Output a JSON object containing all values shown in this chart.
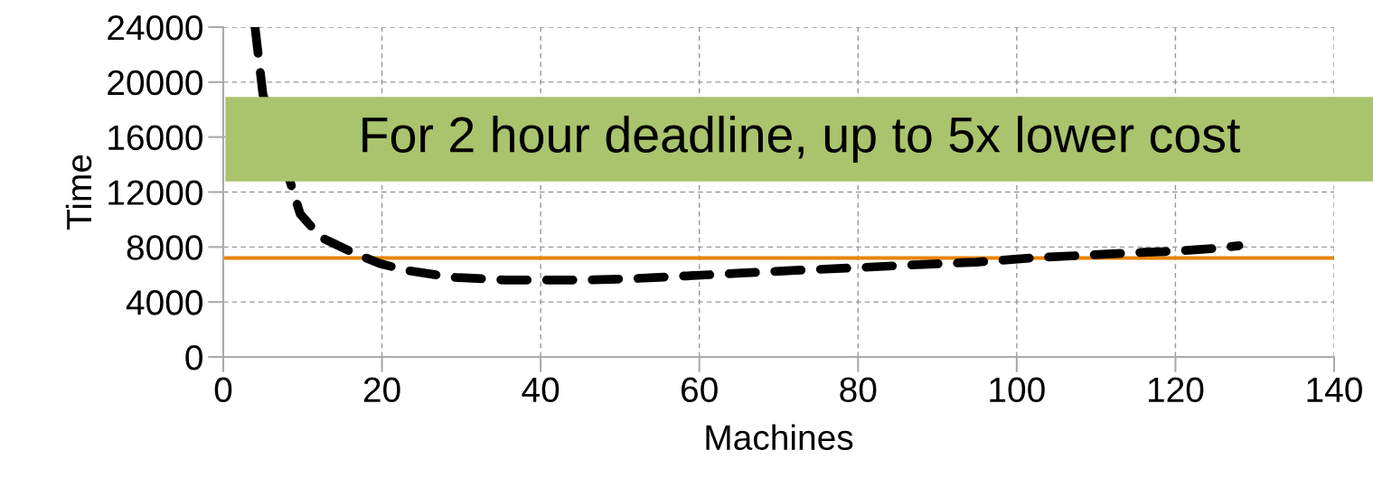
{
  "chart_data": {
    "type": "line",
    "xlabel": "Machines",
    "ylabel": "Time",
    "annotations": [
      "For 2 hour deadline, up to 5x lower cost"
    ],
    "series": [
      {
        "color": "#000000",
        "line_style": "dashed",
        "x": [
          4,
          5,
          9.7,
          12.3,
          16.3,
          19.7,
          23.1,
          28.8,
          35.6,
          40.2,
          45.9,
          51.6,
          58.4,
          65.3,
          72.1,
          80.1,
          86.9,
          94.9,
          101.7,
          108.5,
          115.4,
          120,
          125,
          128
        ],
        "values": [
          24000,
          19100,
          10400,
          8700,
          7600,
          6800,
          6300,
          5800,
          5600,
          5600,
          5600,
          5700,
          5900,
          6100,
          6300,
          6500,
          6700,
          6900,
          7200,
          7400,
          7600,
          7700,
          7900,
          8100
        ]
      }
    ],
    "ref_lines": [
      {
        "axis": "y",
        "value": 7200,
        "color": "#e98300"
      }
    ],
    "xlim": [
      0,
      140
    ],
    "xticks": [
      0,
      20,
      40,
      60,
      80,
      100,
      120,
      140
    ],
    "ylim": [
      0,
      24000
    ],
    "yticks": [
      0,
      4000,
      8000,
      12000,
      16000,
      20000,
      24000
    ],
    "grid": true,
    "legend": false,
    "marker": "none"
  }
}
